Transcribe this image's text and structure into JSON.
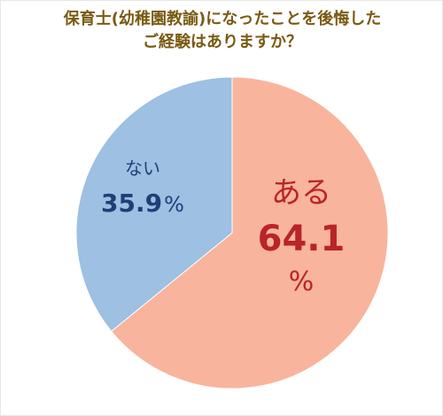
{
  "chart_data": {
    "type": "pie",
    "title_lines": [
      "保育士(幼稚園教諭)になったことを後悔した",
      "ご経験はありますか？"
    ],
    "slices": [
      {
        "label": "ある",
        "value": 64.1,
        "value_text": "64.1",
        "unit": "%",
        "color": "#f9b49d",
        "text_color": "#b8242a"
      },
      {
        "label": "ない",
        "value": 35.9,
        "value_text": "35.9",
        "unit": "%",
        "color": "#9dc0e3",
        "text_color": "#1f3f77"
      }
    ],
    "start_angle_deg": 0,
    "direction": "clockwise",
    "legend": "none"
  }
}
